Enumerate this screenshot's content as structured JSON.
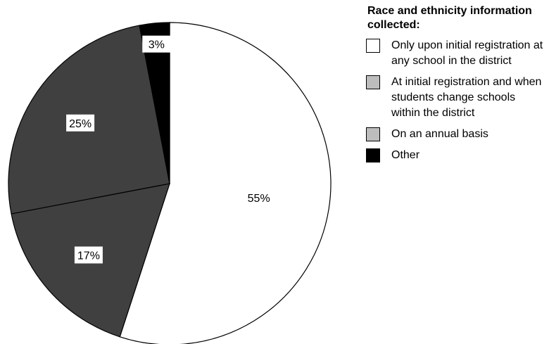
{
  "chart_data": {
    "type": "pie",
    "categories": [
      "Only upon initial registration at any school in the district",
      "At initial registration and when students change schools within the district",
      "On an annual basis",
      "Other"
    ],
    "values": [
      55,
      17,
      25,
      3
    ],
    "labels": [
      "55%",
      "17%",
      "25%",
      "3%"
    ],
    "slice_colors": [
      "#ffffff",
      "#404040",
      "#404040",
      "#000000"
    ],
    "legend_colors": [
      "#ffffff",
      "#bdbdbd",
      "#bdbdbd",
      "#000000"
    ],
    "legend": {
      "title": "Race and ethnicity information collected:",
      "placement": "right"
    }
  }
}
